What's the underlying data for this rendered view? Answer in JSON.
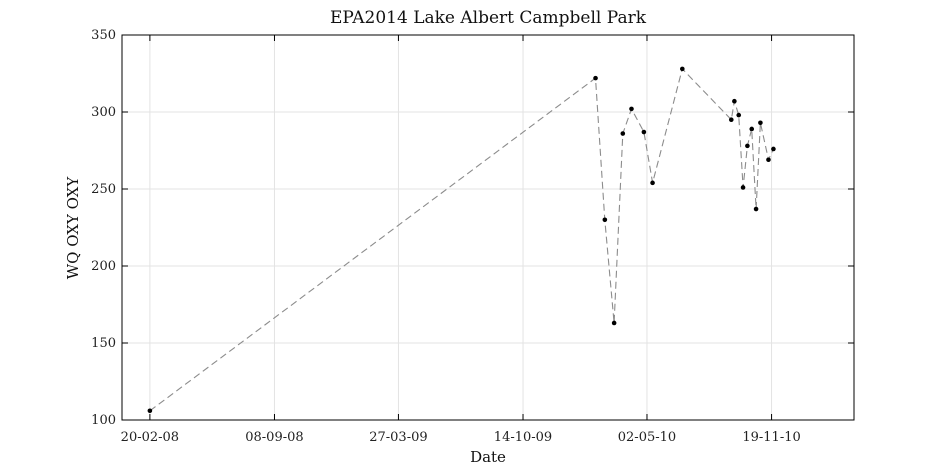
{
  "chart_data": {
    "type": "line",
    "title": "EPA2014 Lake Albert Campbell Park",
    "xlabel": "Date",
    "ylabel": "WQ OXY OXY",
    "x_axis_type": "date",
    "xlim": [
      "2008-01-06",
      "2011-04-01"
    ],
    "ylim": [
      100,
      350
    ],
    "yticks": [
      100,
      150,
      200,
      250,
      300,
      350
    ],
    "xticks": [
      {
        "date": "2008-02-20",
        "label": "20-02-08"
      },
      {
        "date": "2008-09-08",
        "label": "08-09-08"
      },
      {
        "date": "2009-03-27",
        "label": "27-03-09"
      },
      {
        "date": "2009-10-14",
        "label": "14-10-09"
      },
      {
        "date": "2010-05-02",
        "label": "02-05-10"
      },
      {
        "date": "2010-11-19",
        "label": "19-11-10"
      }
    ],
    "grid": true,
    "line_style": "dashed",
    "line_color": "#8c8c8c",
    "marker_color": "#000000",
    "series": [
      {
        "points": [
          {
            "x": "2008-02-20",
            "y": 106
          },
          {
            "x": "2010-02-08",
            "y": 322
          },
          {
            "x": "2010-02-23",
            "y": 230
          },
          {
            "x": "2010-03-10",
            "y": 163
          },
          {
            "x": "2010-03-24",
            "y": 286
          },
          {
            "x": "2010-04-07",
            "y": 302
          },
          {
            "x": "2010-04-27",
            "y": 287
          },
          {
            "x": "2010-05-11",
            "y": 254
          },
          {
            "x": "2010-06-28",
            "y": 328
          },
          {
            "x": "2010-09-15",
            "y": 295
          },
          {
            "x": "2010-09-20",
            "y": 307
          },
          {
            "x": "2010-09-27",
            "y": 298
          },
          {
            "x": "2010-10-04",
            "y": 251
          },
          {
            "x": "2010-10-11",
            "y": 278
          },
          {
            "x": "2010-10-18",
            "y": 289
          },
          {
            "x": "2010-10-25",
            "y": 237
          },
          {
            "x": "2010-11-01",
            "y": 293
          },
          {
            "x": "2010-11-14",
            "y": 269
          },
          {
            "x": "2010-11-22",
            "y": 276
          }
        ]
      }
    ]
  }
}
